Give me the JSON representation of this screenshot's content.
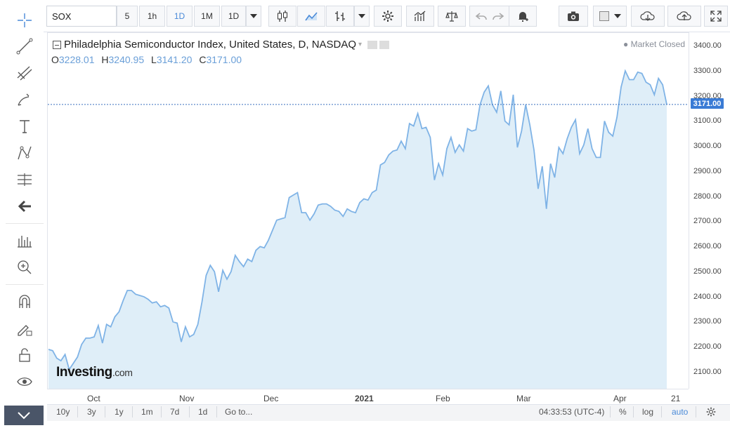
{
  "toolbar": {
    "symbol": "SOX",
    "intervals": [
      "5",
      "1h",
      "1D",
      "1M",
      "1D"
    ],
    "active_interval": "1D",
    "accent_color": "#4a8ad8"
  },
  "legend": {
    "title": "Philadelphia Semiconductor Index, United States, D, NASDAQ",
    "o_label": "O",
    "o_value": "3228.01",
    "h_label": "H",
    "h_value": "3240.95",
    "l_label": "L",
    "l_value": "3141.20",
    "c_label": "C",
    "c_value": "3171.00",
    "market_status": "● Market Closed"
  },
  "logo": {
    "text": "Investing",
    "domain": ".com"
  },
  "price_axis": {
    "ticks": [
      "3400.00",
      "3300.00",
      "3200.00",
      "3100.00",
      "3000.00",
      "2900.00",
      "2800.00",
      "2700.00",
      "2600.00",
      "2500.00",
      "2400.00",
      "2300.00",
      "2200.00",
      "2100.00"
    ],
    "last_price": "3171.00"
  },
  "time_axis": {
    "ticks": [
      "Oct",
      "Nov",
      "Dec",
      "2021",
      "Feb",
      "Mar",
      "Apr",
      "21"
    ]
  },
  "bottom_bar": {
    "ranges": [
      "10y",
      "3y",
      "1y",
      "1m",
      "7d",
      "1d",
      "Go to..."
    ],
    "clock": "04:33:53 (UTC-4)",
    "percent": "%",
    "log": "log",
    "auto": "auto"
  },
  "chart_data": {
    "type": "area",
    "title": "Philadelphia Semiconductor Index, United States, D, NASDAQ",
    "xlabel": "",
    "ylabel": "",
    "ylim": [
      2020,
      3440
    ],
    "line_color": "#7fb3e6",
    "fill_color": "#dfeef8",
    "x_ticks": [
      "Oct",
      "Nov",
      "Dec",
      "2021",
      "Feb",
      "Mar",
      "Apr",
      "21"
    ],
    "values": [
      2195,
      2190,
      2160,
      2150,
      2175,
      2115,
      2140,
      2165,
      2215,
      2240,
      2240,
      2245,
      2290,
      2220,
      2295,
      2285,
      2325,
      2345,
      2390,
      2430,
      2430,
      2415,
      2410,
      2405,
      2395,
      2380,
      2385,
      2365,
      2370,
      2360,
      2305,
      2300,
      2225,
      2285,
      2245,
      2255,
      2295,
      2385,
      2490,
      2530,
      2505,
      2425,
      2510,
      2475,
      2505,
      2570,
      2545,
      2525,
      2555,
      2545,
      2590,
      2605,
      2600,
      2630,
      2670,
      2710,
      2715,
      2720,
      2800,
      2810,
      2820,
      2740,
      2740,
      2710,
      2735,
      2770,
      2775,
      2775,
      2765,
      2750,
      2745,
      2725,
      2755,
      2745,
      2740,
      2780,
      2795,
      2790,
      2820,
      2830,
      2930,
      2940,
      2970,
      2985,
      2990,
      3025,
      2995,
      3095,
      3085,
      3135,
      3075,
      3080,
      3040,
      2870,
      2935,
      2890,
      2995,
      3040,
      2980,
      3010,
      2985,
      3075,
      3065,
      3070,
      3170,
      3220,
      3245,
      3170,
      3140,
      3225,
      3105,
      3090,
      3210,
      3000,
      3065,
      3170,
      3090,
      2990,
      2835,
      2925,
      2755,
      2935,
      2880,
      3000,
      2975,
      3035,
      3080,
      3110,
      2975,
      3010,
      3075,
      2995,
      2960,
      2960,
      3105,
      3060,
      3045,
      3120,
      3240,
      3305,
      3270,
      3270,
      3300,
      3295,
      3260,
      3250,
      3210,
      3275,
      3250,
      3171
    ]
  }
}
